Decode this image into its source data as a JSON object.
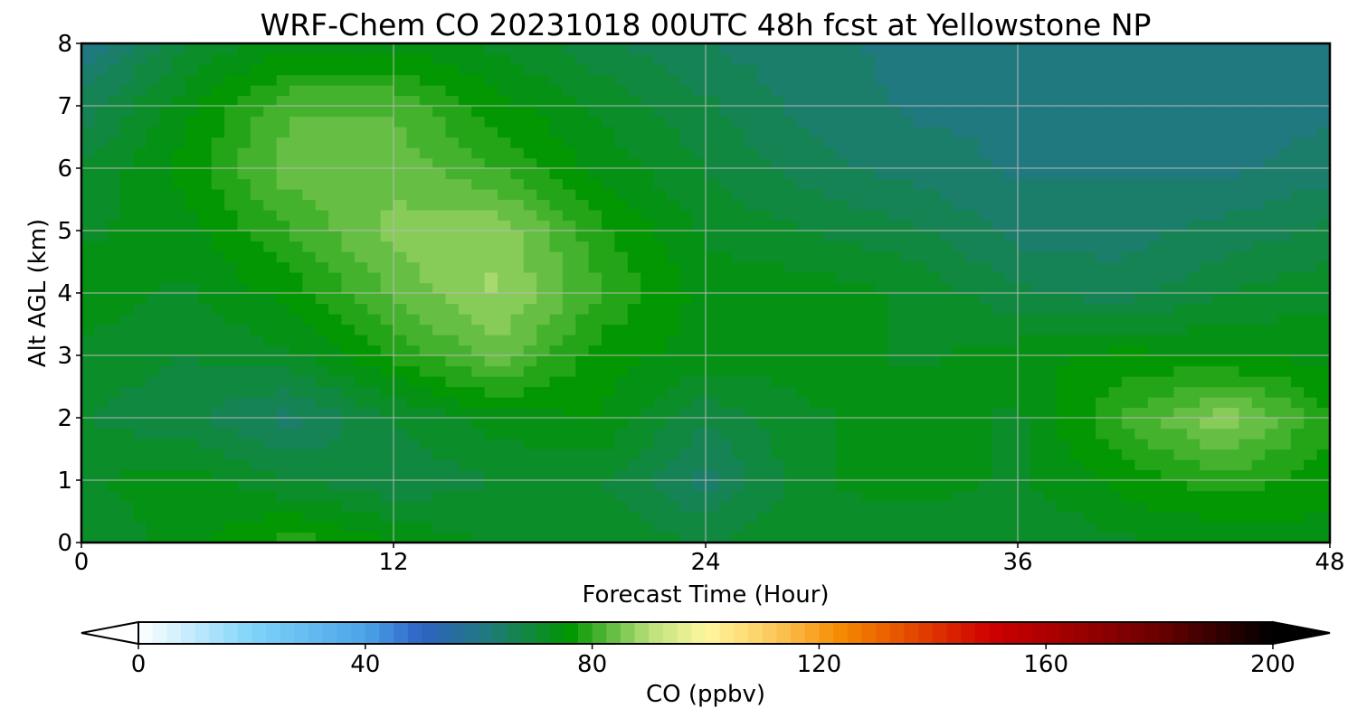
{
  "chart_data": {
    "type": "heatmap",
    "title": "WRF-Chem CO  20231018 00UTC 48h fcst at Yellowstone NP",
    "xlabel": "Forecast Time (Hour)",
    "ylabel": "Alt AGL (km)",
    "xlim": [
      0,
      48
    ],
    "ylim": [
      0,
      8
    ],
    "x_ticks": [
      0,
      12,
      24,
      36,
      48
    ],
    "y_ticks": [
      0,
      1,
      2,
      3,
      4,
      5,
      6,
      7,
      8
    ],
    "grid": true,
    "x": [
      0,
      4,
      8,
      12,
      16,
      20,
      24,
      28,
      32,
      36,
      40,
      44,
      48
    ],
    "y": [
      0,
      1,
      2,
      3,
      4,
      5,
      6,
      7,
      8
    ],
    "z": [
      [
        70,
        74,
        79,
        75,
        72,
        72,
        70,
        72,
        70,
        70,
        72,
        73,
        74
      ],
      [
        72,
        74,
        70,
        68,
        70,
        70,
        64,
        72,
        74,
        72,
        76,
        79,
        76
      ],
      [
        70,
        68,
        64,
        70,
        74,
        75,
        68,
        72,
        74,
        72,
        80,
        87,
        78
      ],
      [
        72,
        70,
        72,
        78,
        84,
        76,
        74,
        74,
        72,
        74,
        76,
        75,
        74
      ],
      [
        74,
        72,
        76,
        83,
        88,
        80,
        74,
        74,
        72,
        68,
        66,
        70,
        72
      ],
      [
        72,
        74,
        80,
        86,
        87,
        78,
        72,
        70,
        68,
        64,
        64,
        66,
        68
      ],
      [
        70,
        76,
        84,
        84,
        80,
        74,
        70,
        66,
        64,
        62,
        62,
        62,
        64
      ],
      [
        66,
        74,
        82,
        82,
        76,
        72,
        68,
        64,
        62,
        62,
        61,
        60,
        62
      ],
      [
        60,
        70,
        74,
        74,
        72,
        68,
        65,
        63,
        62,
        62,
        62,
        61,
        62
      ]
    ],
    "colorbar": {
      "label": "CO  (ppbv)",
      "min": 0,
      "max": 200,
      "step": 2.5,
      "ticks": [
        0,
        40,
        80,
        120,
        160,
        200
      ],
      "extend": "both",
      "colors": [
        {
          "v": 0,
          "c": "#ffffff"
        },
        {
          "v": 20,
          "c": "#7fd4fa"
        },
        {
          "v": 40,
          "c": "#4aa4e8"
        },
        {
          "v": 50,
          "c": "#2e62c4"
        },
        {
          "v": 62,
          "c": "#1f7a7a"
        },
        {
          "v": 76,
          "c": "#009600"
        },
        {
          "v": 90,
          "c": "#b9e07a"
        },
        {
          "v": 100,
          "c": "#fff79e"
        },
        {
          "v": 112,
          "c": "#fcc85c"
        },
        {
          "v": 124,
          "c": "#f58a00"
        },
        {
          "v": 150,
          "c": "#d00000"
        },
        {
          "v": 180,
          "c": "#6a0000"
        },
        {
          "v": 200,
          "c": "#000000"
        }
      ]
    }
  }
}
